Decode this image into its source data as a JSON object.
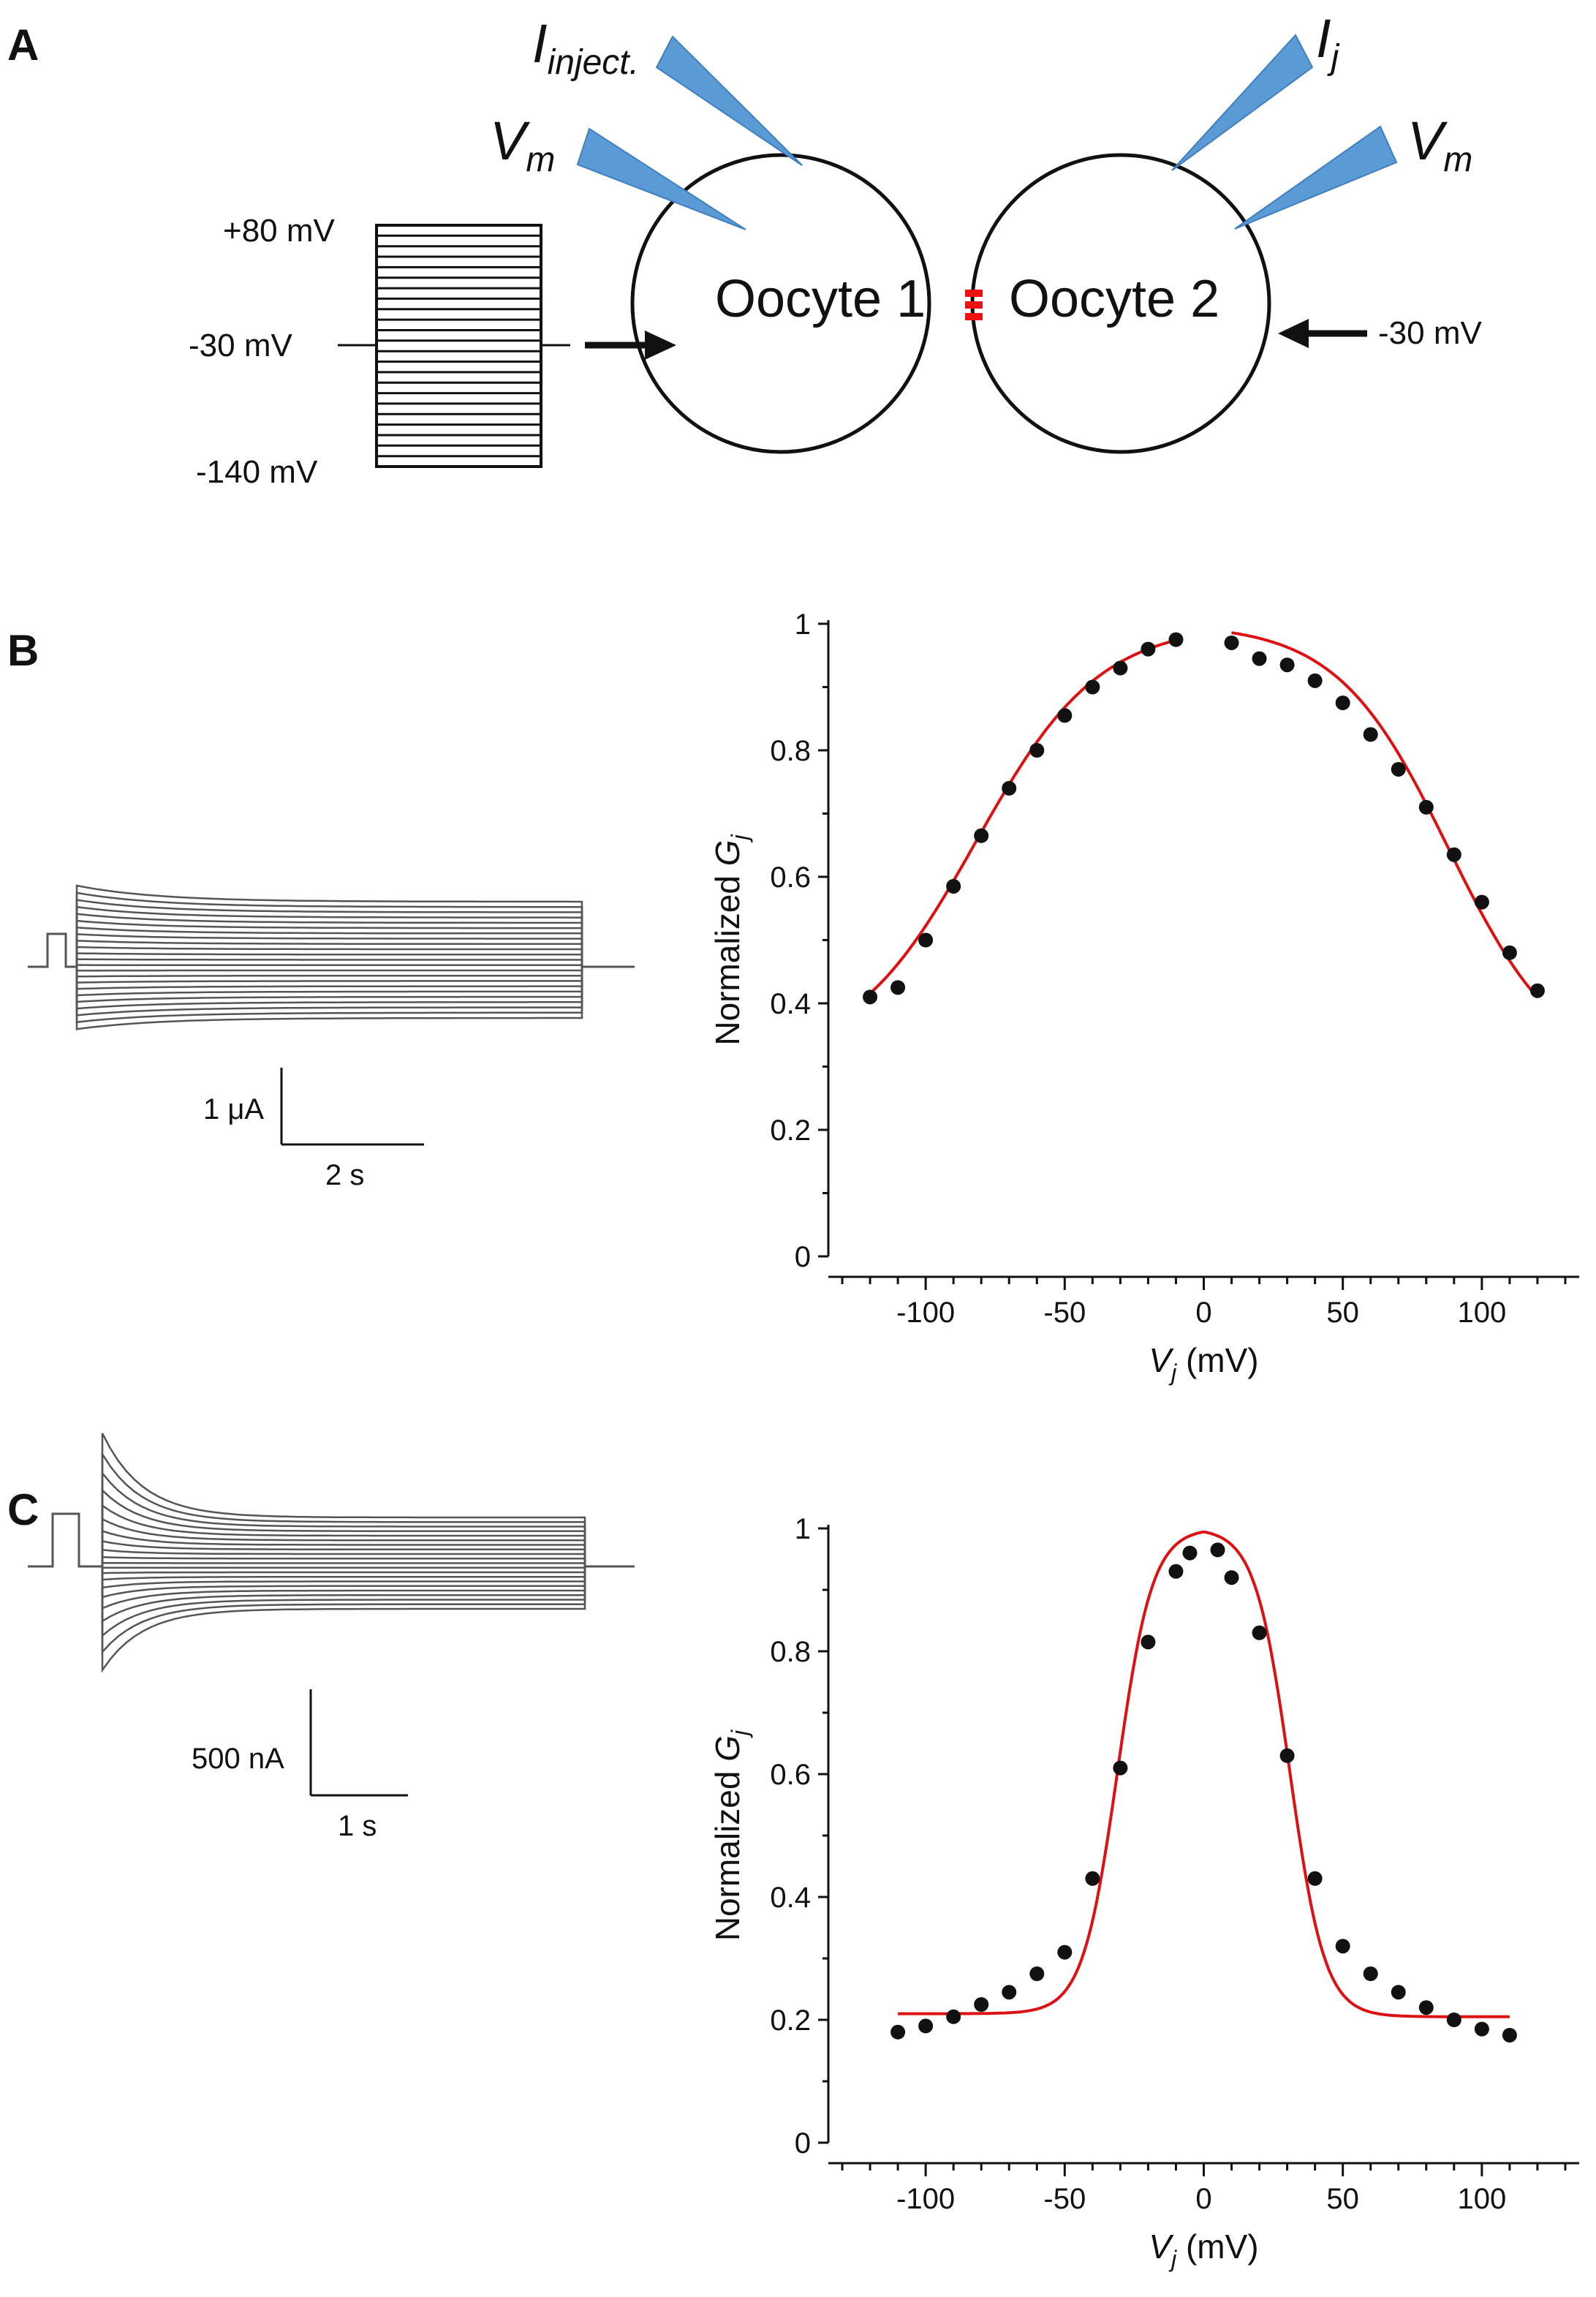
{
  "panels": {
    "A": {
      "letter": "A",
      "oocyte1": "Oocyte 1",
      "oocyte2": "Oocyte 2",
      "electrode_labels": {
        "i_inject_main": "I",
        "i_inject_sub": "inject.",
        "vm_left_main": "V",
        "vm_left_sub": "m",
        "ij_main": "I",
        "ij_sub": "j",
        "vm_right_main": "V",
        "vm_right_sub": "m"
      },
      "protocol": {
        "top": "+80 mV",
        "hold": "-30 mV",
        "bottom": "-140 mV",
        "step_count": 23
      },
      "oocyte2_hold": "-30 mV",
      "colors": {
        "electrode": "#5b9bd5",
        "junction": "#ee1111"
      }
    },
    "B": {
      "letter": "B",
      "scalebar_current": "1 μA",
      "scalebar_time": "2 s"
    },
    "C": {
      "letter": "C",
      "scalebar_current": "500 nA",
      "scalebar_time": "1 s"
    }
  },
  "chart_data": [
    {
      "id": "B",
      "type": "scatter",
      "title": "",
      "xlabel_main": "V",
      "xlabel_sub": "j",
      "xlabel_rest": " (mV)",
      "ylabel_main": "Normalized ",
      "ylabel_sym": "G",
      "ylabel_sub": "j",
      "xlim": [
        -135,
        135
      ],
      "ylim": [
        0,
        1
      ],
      "xticks": [
        -100,
        -50,
        0,
        50,
        100
      ],
      "yticks": [
        0,
        0.2,
        0.4,
        0.6,
        0.8,
        1
      ],
      "ytick_labels": [
        "0",
        "0.2",
        "0.4",
        "0.6",
        "0.8",
        "1"
      ],
      "points_x": [
        -120,
        -110,
        -100,
        -90,
        -80,
        -70,
        -60,
        -50,
        -40,
        -30,
        -20,
        -10,
        10,
        20,
        30,
        40,
        50,
        60,
        70,
        80,
        90,
        100,
        110,
        120
      ],
      "points_y": [
        0.41,
        0.425,
        0.5,
        0.585,
        0.665,
        0.74,
        0.8,
        0.855,
        0.9,
        0.93,
        0.96,
        0.975,
        0.97,
        0.945,
        0.935,
        0.91,
        0.875,
        0.825,
        0.77,
        0.71,
        0.635,
        0.56,
        0.48,
        0.42
      ],
      "fit": {
        "color": "#dd1111",
        "neg": {
          "gmin": 0.31,
          "v0": -82,
          "a": 0.045,
          "range": [
            -120,
            -10
          ]
        },
        "pos": {
          "gmin": 0.29,
          "v0": 88,
          "a": 0.05,
          "range": [
            10,
            120
          ]
        }
      }
    },
    {
      "id": "C",
      "type": "scatter",
      "title": "",
      "xlabel_main": "V",
      "xlabel_sub": "j",
      "xlabel_rest": " (mV)",
      "ylabel_main": "Normalized ",
      "ylabel_sym": "G",
      "ylabel_sub": "j",
      "xlim": [
        -135,
        135
      ],
      "ylim": [
        0,
        1
      ],
      "xticks": [
        -100,
        -50,
        0,
        50,
        100
      ],
      "yticks": [
        0,
        0.2,
        0.4,
        0.6,
        0.8,
        1
      ],
      "ytick_labels": [
        "0",
        "0.2",
        "0.4",
        "0.6",
        "0.8",
        "1"
      ],
      "points_x": [
        -110,
        -100,
        -90,
        -80,
        -70,
        -60,
        -50,
        -40,
        -30,
        -20,
        -10,
        -5,
        5,
        10,
        20,
        30,
        40,
        50,
        60,
        70,
        80,
        90,
        100,
        110
      ],
      "points_y": [
        0.18,
        0.19,
        0.205,
        0.225,
        0.245,
        0.275,
        0.31,
        0.43,
        0.61,
        0.815,
        0.93,
        0.96,
        0.965,
        0.92,
        0.83,
        0.63,
        0.43,
        0.32,
        0.275,
        0.245,
        0.22,
        0.2,
        0.185,
        0.175
      ],
      "fit": {
        "color": "#dd1111",
        "neg": {
          "gmin": 0.21,
          "v0": -31,
          "a": 0.16,
          "range": [
            -110,
            0
          ]
        },
        "pos": {
          "gmin": 0.205,
          "v0": 31,
          "a": 0.16,
          "range": [
            0,
            110
          ]
        }
      }
    }
  ]
}
